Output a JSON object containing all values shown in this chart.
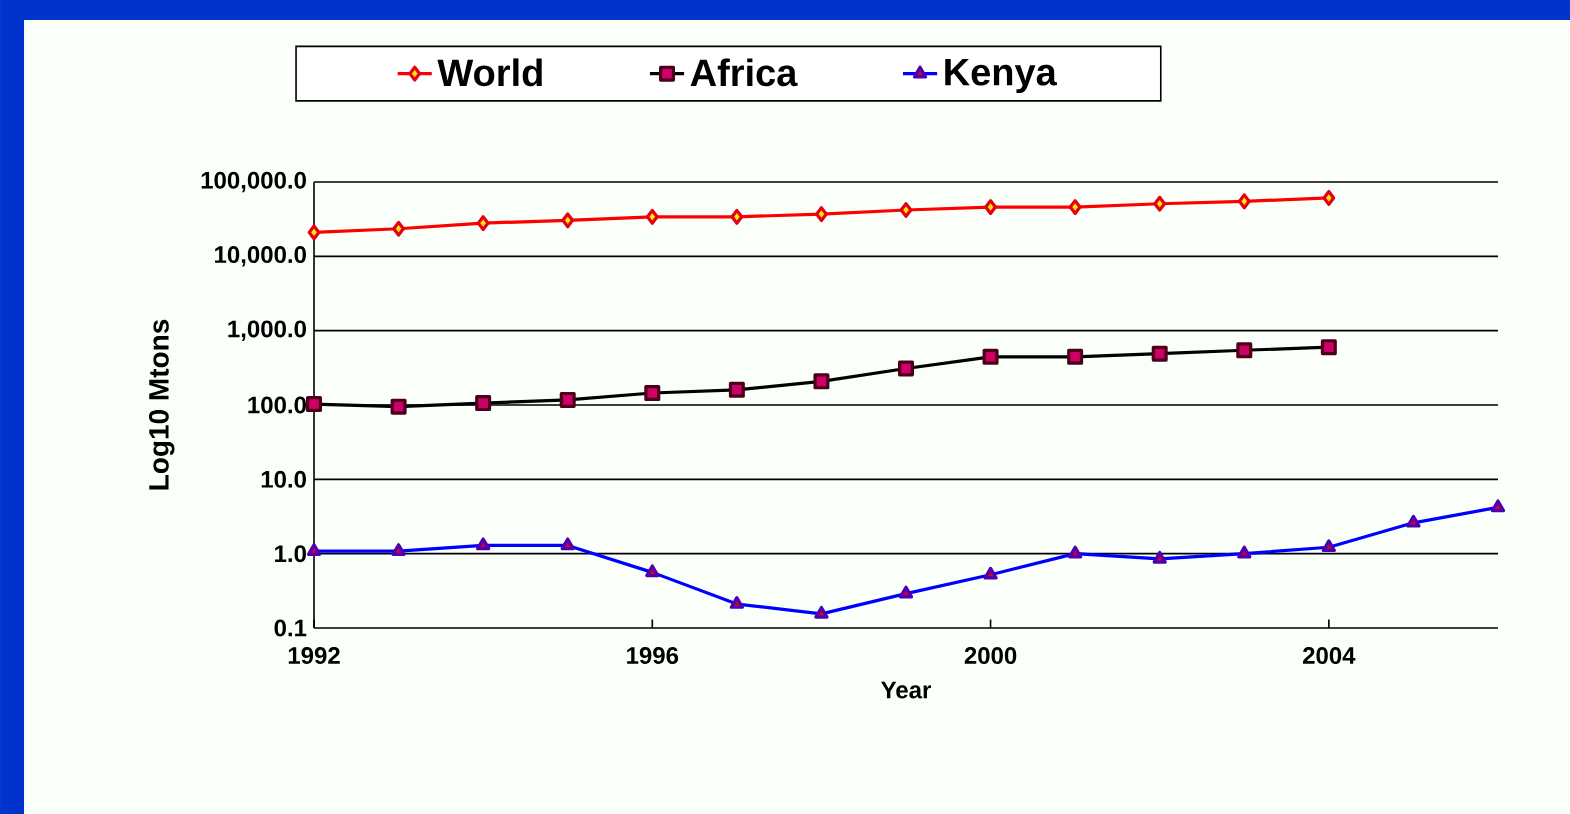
{
  "chart_data": {
    "type": "line",
    "xlabel": "Year",
    "ylabel": "Log10 Mtons",
    "log": "y",
    "grid": "y",
    "legend": "top",
    "line_style": "solid",
    "x": [
      1992,
      1993,
      1994,
      1995,
      1996,
      1997,
      1998,
      1999,
      2000,
      2001,
      2002,
      2003,
      2004,
      2005,
      2006
    ],
    "xlim": [
      1992,
      2006
    ],
    "xticks": [
      1992,
      1996,
      2000,
      2004
    ],
    "ylim": [
      0.1,
      100000
    ],
    "yticks": [
      {
        "value": 0.1,
        "label": "0.1"
      },
      {
        "value": 1,
        "label": "1.0"
      },
      {
        "value": 10,
        "label": "10.0"
      },
      {
        "value": 100,
        "label": "100.0"
      },
      {
        "value": 1000,
        "label": "1,000.0"
      },
      {
        "value": 10000,
        "label": "10,000.0"
      },
      {
        "value": 100000,
        "label": "100,000.0"
      }
    ],
    "series": [
      {
        "name": "World",
        "color": "#ff0000",
        "marker": "diamond",
        "values": [
          21000,
          23500,
          28000,
          30500,
          34000,
          34000,
          37000,
          42000,
          46000,
          46000,
          51000,
          55000,
          61000,
          null,
          null
        ]
      },
      {
        "name": "Africa",
        "color": "#000000",
        "marker": "square",
        "values": [
          103,
          95,
          106,
          117,
          145,
          160,
          208,
          310,
          445,
          445,
          490,
          545,
          600,
          null,
          null
        ]
      },
      {
        "name": "Kenya",
        "color": "#0000ff",
        "marker": "triangle",
        "values": [
          1.08,
          1.08,
          1.29,
          1.29,
          0.56,
          0.21,
          0.155,
          0.29,
          0.52,
          1.0,
          0.85,
          1.0,
          1.22,
          2.6,
          4.2
        ]
      }
    ]
  }
}
